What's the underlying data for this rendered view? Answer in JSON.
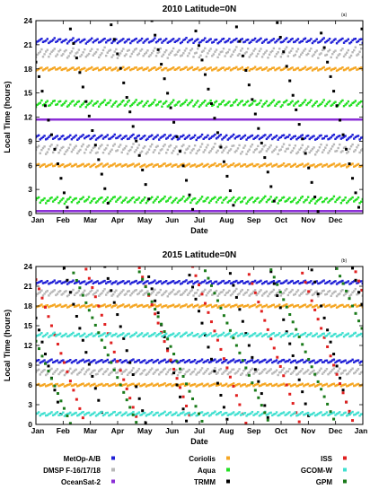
{
  "chart_data": [
    {
      "type": "scatter",
      "title": "2010  Latitude=0N",
      "panel_label": "(a)",
      "xlabel": "Date",
      "ylabel": "Local Time (hours)",
      "ylim": [
        0,
        24
      ],
      "yticks": [
        0,
        3,
        6,
        9,
        12,
        15,
        18,
        21,
        24
      ],
      "x_tick_labels": [
        "Jan",
        "Feb",
        "Mar",
        "Apr",
        "May",
        "Jun",
        "Jul",
        "Aug",
        "Sep",
        "Oct",
        "Nov",
        "Dec"
      ],
      "grid": false,
      "series": [
        {
          "name": "MetOp-A/B",
          "color": "#1f1fd6",
          "bands": [
            [
              21.5,
              0.3
            ],
            [
              9.5,
              0.3
            ]
          ]
        },
        {
          "name": "DMSP F-16/17/18",
          "color": "#b8b8b8",
          "bands": [
            [
              20.0,
              0.6
            ],
            [
              8.0,
              0.6
            ]
          ]
        },
        {
          "name": "OceanSat-2",
          "color": "#8b2fd6",
          "bands": [
            [
              11.7,
              0.05
            ],
            [
              0.3,
              0.05
            ]
          ]
        },
        {
          "name": "Coriolis",
          "color": "#f5a623",
          "bands": [
            [
              18.0,
              0.2
            ],
            [
              6.0,
              0.2
            ]
          ]
        },
        {
          "name": "Aqua",
          "color": "#22e022",
          "bands": [
            [
              13.7,
              0.4
            ],
            [
              1.7,
              0.4
            ]
          ]
        },
        {
          "name": "TRMM",
          "color": "#000000",
          "precess": {
            "period_days": 46.5,
            "phase": 10
          }
        }
      ]
    },
    {
      "type": "scatter",
      "title": "2015  Latitude=0N",
      "panel_label": "(b)",
      "xlabel": "Date",
      "ylabel": "Local Time (hours)",
      "ylim": [
        0,
        24
      ],
      "yticks": [
        0,
        3,
        6,
        9,
        12,
        15,
        18,
        21,
        24
      ],
      "x_tick_labels": [
        "Jan",
        "Feb",
        "Mar",
        "Apr",
        "May",
        "Jun",
        "Jul",
        "Aug",
        "Sep",
        "Oct",
        "Nov",
        "Dec",
        "Jan"
      ],
      "grid": false,
      "series": [
        {
          "name": "MetOp-A/B",
          "color": "#1f1fd6",
          "bands": [
            [
              21.6,
              0.25
            ],
            [
              9.6,
              0.25
            ]
          ]
        },
        {
          "name": "DMSP F-16/17/18",
          "color": "#b8b8b8",
          "bands": [
            [
              20.0,
              0.5
            ],
            [
              8.0,
              0.5
            ]
          ]
        },
        {
          "name": "Coriolis",
          "color": "#f5a623",
          "bands": [
            [
              18.0,
              0.2
            ],
            [
              6.0,
              0.2
            ]
          ]
        },
        {
          "name": "TRMM",
          "color": "#000000",
          "precess": {
            "period_days": 46,
            "phase": 15
          }
        },
        {
          "name": "ISS",
          "color": "#e02020",
          "precess": {
            "period_days": 60,
            "phase": 5
          }
        },
        {
          "name": "GCOM-W",
          "color": "#40e0d0",
          "bands": [
            [
              13.6,
              0.3
            ],
            [
              1.6,
              0.3
            ]
          ]
        },
        {
          "name": "GPM",
          "color": "#1a7a1a",
          "precess": {
            "period_days": 74,
            "phase": 35
          }
        }
      ]
    }
  ],
  "legend": [
    {
      "label": "MetOp-A/B",
      "color": "#1f1fd6"
    },
    {
      "label": "Coriolis",
      "color": "#f5a623"
    },
    {
      "label": "ISS",
      "color": "#e02020"
    },
    {
      "label": "DMSP F-16/17/18",
      "color": "#b8b8b8"
    },
    {
      "label": "Aqua",
      "color": "#22e022"
    },
    {
      "label": "GCOM-W",
      "color": "#40e0d0"
    },
    {
      "label": "OceanSat-2",
      "color": "#8b2fd6"
    },
    {
      "label": "TRMM",
      "color": "#000000"
    },
    {
      "label": "GPM",
      "color": "#1a7a1a"
    }
  ]
}
